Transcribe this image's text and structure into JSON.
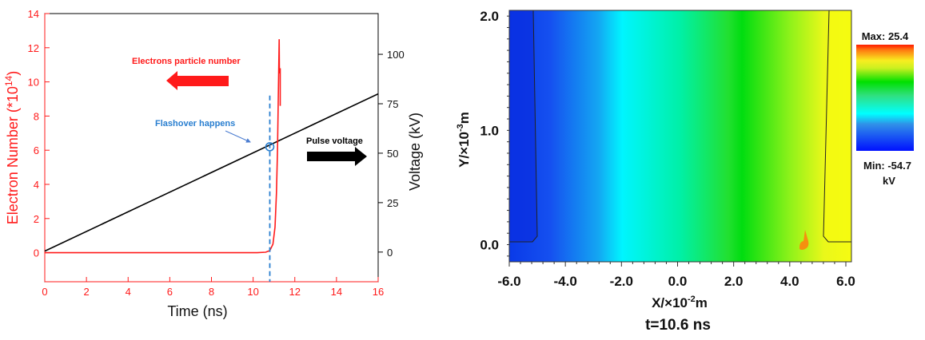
{
  "chart_data": [
    {
      "type": "line",
      "xlabel": "Time (ns)",
      "ylabel_left": "Electron Number (*10",
      "ylabel_left_exp": "14",
      "ylabel_left_close": ")",
      "ylabel_right": "Voltage (kV)",
      "xlim": [
        0,
        16
      ],
      "ylim_left": [
        -1.7,
        14
      ],
      "ylim_right": [
        -15,
        120.6
      ],
      "x_ticks": [
        "0",
        "2",
        "4",
        "6",
        "8",
        "10",
        "12",
        "14",
        "16"
      ],
      "y_left_ticks": [
        "0",
        "2",
        "4",
        "6",
        "8",
        "10",
        "12",
        "14"
      ],
      "y_right_ticks": [
        "0",
        "25",
        "50",
        "75",
        "100"
      ],
      "series": [
        {
          "name": "Electrons particle number",
          "axis": "left",
          "color": "#ff1a1a",
          "points": [
            [
              0,
              0
            ],
            [
              10.2,
              0
            ],
            [
              10.6,
              0.03
            ],
            [
              10.8,
              0.12
            ],
            [
              10.95,
              0.5
            ],
            [
              11.05,
              1.5
            ],
            [
              11.12,
              3.5
            ],
            [
              11.17,
              6
            ],
            [
              11.2,
              8.5
            ],
            [
              11.23,
              11
            ],
            [
              11.25,
              12.5
            ],
            [
              11.26,
              10.5
            ],
            [
              11.3,
              10.8
            ],
            [
              11.3,
              8.6
            ]
          ]
        },
        {
          "name": "Pulse voltage",
          "axis": "right",
          "color": "#000000",
          "points": [
            [
              0,
              0.5
            ],
            [
              16,
              80
            ]
          ]
        }
      ],
      "annotations": {
        "electrons_label": "Electrons particle number",
        "voltage_label": "Pulse voltage",
        "flashover_label": "Flashover happens",
        "flashover_time": 10.8,
        "flashover_electron": 6.2
      }
    },
    {
      "type": "heatmap",
      "xlabel": "X/×10",
      "xlabel_exp": "-2",
      "xlabel_unit": "m",
      "ylabel": "Y/×10",
      "ylabel_exp": "-3",
      "ylabel_unit": "m",
      "xlim": [
        -6.0,
        6.2
      ],
      "ylim": [
        -0.15,
        2.05
      ],
      "x_ticks": [
        "-6.0",
        "-4.0",
        "-2.0",
        "0.0",
        "2.0",
        "4.0",
        "6.0"
      ],
      "y_ticks": [
        "0.0",
        "1.0",
        "2.0"
      ],
      "colorbar": {
        "max_label": "Max: 25.4",
        "min_label": "Min: -54.7",
        "unit": "kV",
        "max": 25.4,
        "min": -54.7
      },
      "caption": "t=10.6 ns"
    }
  ]
}
